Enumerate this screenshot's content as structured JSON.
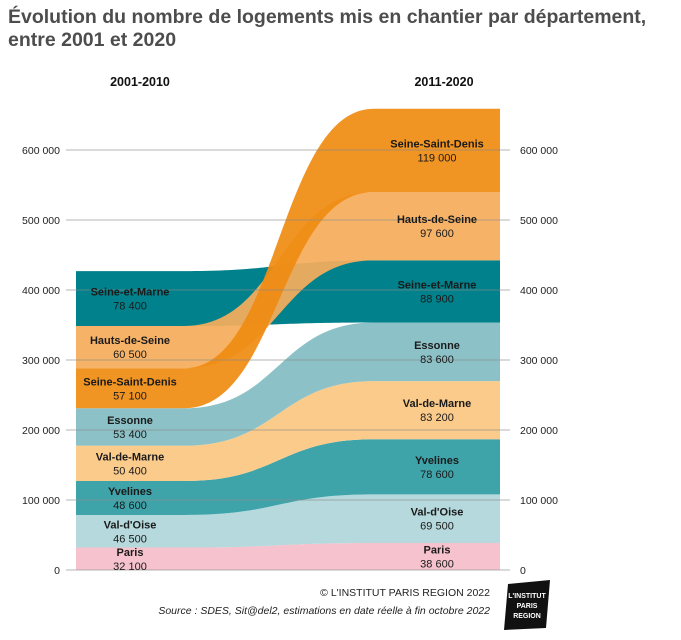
{
  "title": "Évolution du nombre de logements mis en chantier par département, entre 2001 et 2020",
  "colors": {
    "Seine-et-Marne": "#00818b",
    "Hauts-de-Seine": "#f5ad5c",
    "Seine-Saint-Denis": "#ef8c12",
    "Essonne": "#8cc2c7",
    "Val-de-Marne": "#fbcb8c",
    "Yvelines": "#3ea4aa",
    "Val-d'Oise": "#b5d9dc",
    "Paris": "#f6c2cd"
  },
  "chart_data": {
    "type": "area",
    "title": "Évolution du nombre de logements mis en chantier par département, entre 2001 et 2020",
    "x": [
      "2001-2010",
      "2011-2020"
    ],
    "ylim": [
      0,
      660000
    ],
    "yticks": [
      0,
      100000,
      200000,
      300000,
      400000,
      500000,
      600000
    ],
    "ytick_labels": [
      "0",
      "100 000",
      "200 000",
      "300 000",
      "400 000",
      "500 000",
      "600 000"
    ],
    "grid": true,
    "series": [
      {
        "name": "Paris",
        "value_labels": [
          "32 100",
          "38 600"
        ],
        "values": [
          32100,
          38600
        ]
      },
      {
        "name": "Val-d'Oise",
        "value_labels": [
          "46 500",
          "69 500"
        ],
        "values": [
          46500,
          69500
        ]
      },
      {
        "name": "Yvelines",
        "value_labels": [
          "48 600",
          "78 600"
        ],
        "values": [
          48600,
          78600
        ]
      },
      {
        "name": "Val-de-Marne",
        "value_labels": [
          "50 400",
          "83 200"
        ],
        "values": [
          50400,
          83200
        ]
      },
      {
        "name": "Essonne",
        "value_labels": [
          "53 400",
          "83 600"
        ],
        "values": [
          53400,
          83600
        ]
      },
      {
        "name": "Seine-Saint-Denis",
        "value_labels": [
          "57 100",
          "119 000"
        ],
        "values": [
          57100,
          119000
        ]
      },
      {
        "name": "Hauts-de-Seine",
        "value_labels": [
          "60 500",
          "97 600"
        ],
        "values": [
          60500,
          97600
        ]
      },
      {
        "name": "Seine-et-Marne",
        "value_labels": [
          "78 400",
          "88 900"
        ],
        "values": [
          78400,
          88900
        ]
      }
    ],
    "order_right": [
      "Paris",
      "Val-d'Oise",
      "Yvelines",
      "Val-de-Marne",
      "Essonne",
      "Seine-et-Marne",
      "Hauts-de-Seine",
      "Seine-Saint-Denis"
    ]
  },
  "footer": {
    "copyright": "© L'INSTITUT PARIS REGION 2022",
    "source": "Source : SDES, Sit@del2, estimations en date réelle à fin octobre 2022"
  },
  "logo": {
    "line1": "L'INSTITUT",
    "line2": "PARIS",
    "line3": "REGION"
  }
}
